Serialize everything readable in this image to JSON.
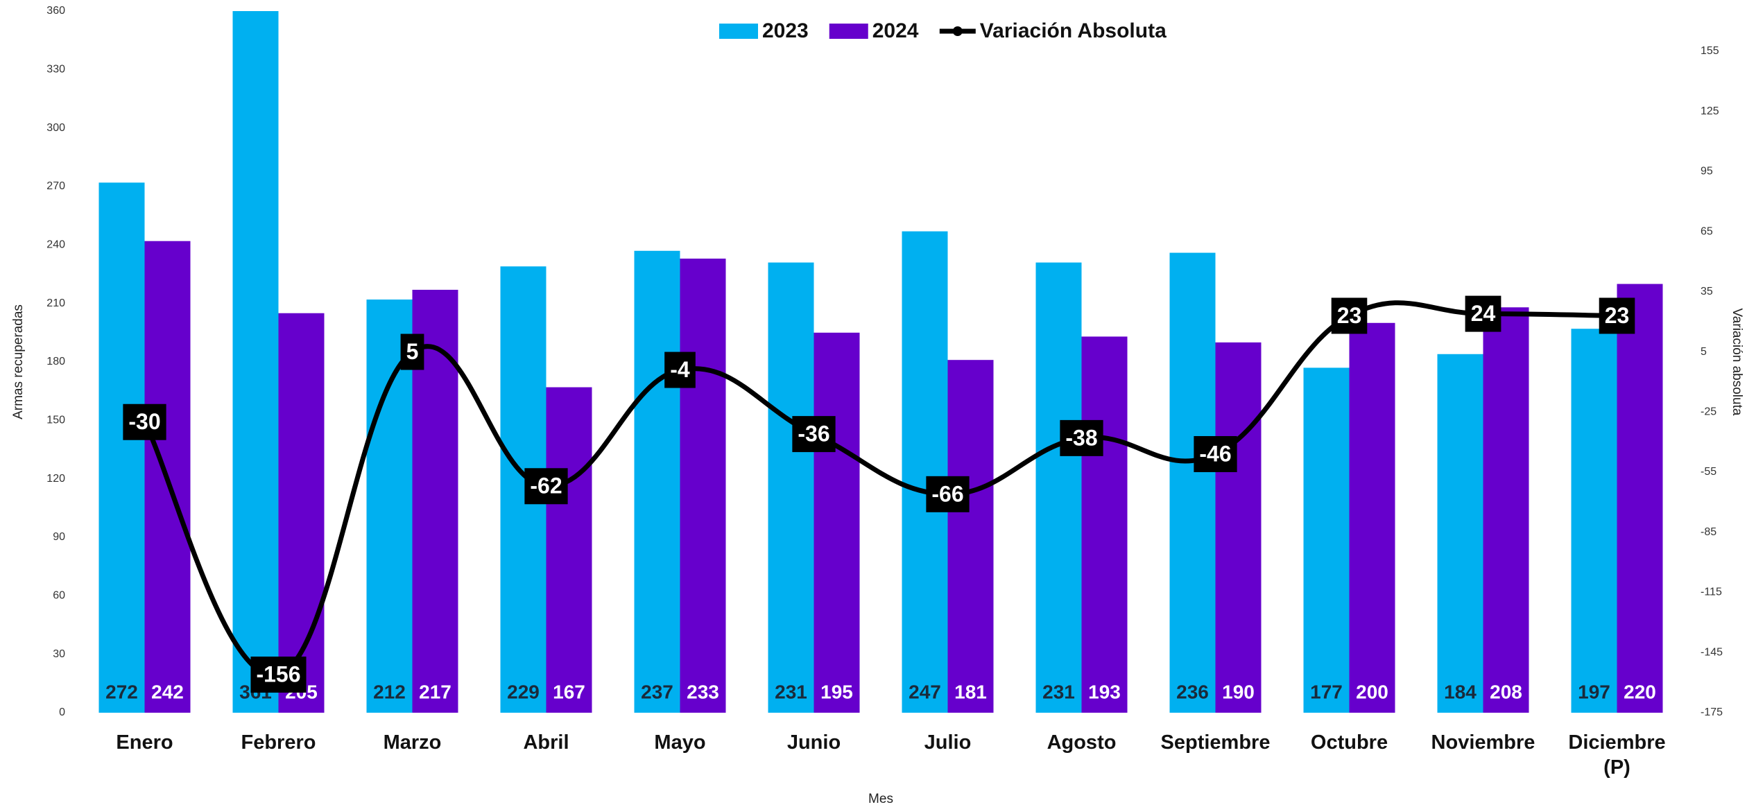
{
  "chart_data": {
    "type": "bar",
    "categories": [
      "Enero",
      "Febrero",
      "Marzo",
      "Abril",
      "Mayo",
      "Junio",
      "Julio",
      "Agosto",
      "Septiembre",
      "Octubre",
      "Noviembre",
      "Diciembre (P)"
    ],
    "series": [
      {
        "name": "2023",
        "color": "#00b0f0",
        "values": [
          272,
          361,
          212,
          229,
          237,
          231,
          247,
          231,
          236,
          177,
          184,
          197
        ]
      },
      {
        "name": "2024",
        "color": "#6600cc",
        "values": [
          242,
          205,
          217,
          167,
          233,
          195,
          181,
          193,
          190,
          200,
          208,
          220
        ]
      },
      {
        "name": "Variación Absoluta",
        "type": "line",
        "axis": "y2",
        "color": "#000000",
        "values": [
          -30,
          -156,
          5,
          -62,
          -4,
          -36,
          -66,
          -38,
          -46,
          23,
          24,
          23
        ]
      }
    ],
    "x_label": "Mes",
    "y_label": "Armas recuperadas",
    "y2_label": "Variación absoluta",
    "ylim": [
      0,
      360
    ],
    "yticks": [
      0,
      30,
      60,
      90,
      120,
      150,
      180,
      210,
      240,
      270,
      300,
      330,
      360
    ],
    "y2lim": [
      -175,
      175
    ],
    "y2ticks": [
      -175,
      -145,
      -115,
      -85,
      -55,
      -25,
      5,
      35,
      65,
      95,
      125,
      155
    ],
    "legend": "top",
    "grid": false
  }
}
